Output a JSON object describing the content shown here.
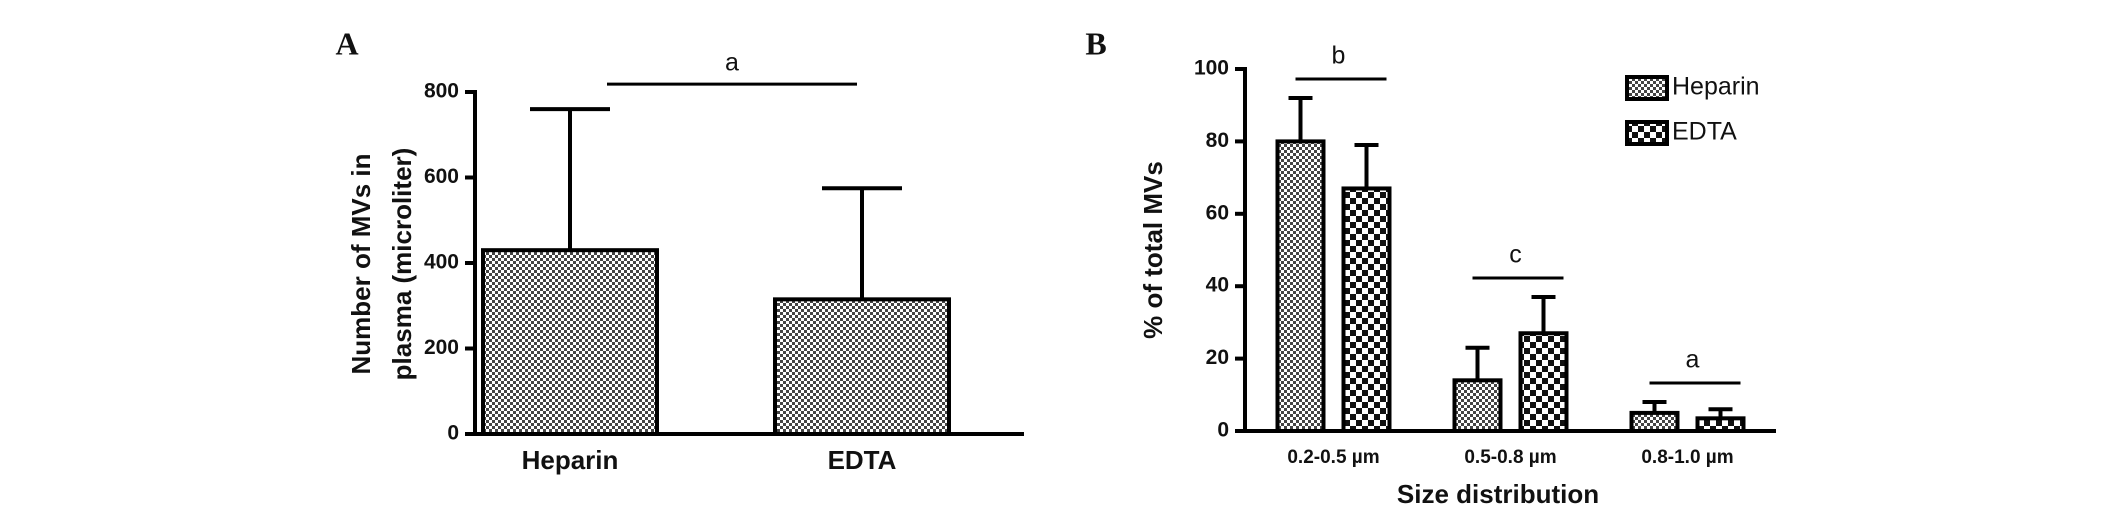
{
  "chart_data": [
    {
      "type": "bar",
      "panel_label": "A",
      "y_label": [
        "Number of MVs in",
        "plasma (microliter)"
      ],
      "categories": [
        "Heparin",
        "EDTA"
      ],
      "values": [
        430,
        315
      ],
      "errors": [
        330,
        260
      ],
      "patterns": [
        "fine",
        "fine"
      ],
      "color": "#000000",
      "significance": "a",
      "ylim": [
        0,
        800
      ],
      "yticks": [
        0,
        200,
        400,
        600,
        800
      ]
    },
    {
      "type": "grouped_bar",
      "panel_label": "B",
      "y_label": "% of total MVs",
      "x_label": "Size distribution",
      "categories": [
        "0.2-0.5 µm",
        "0.5-0.8 µm",
        "0.8-1.0 µm"
      ],
      "series": [
        {
          "name": "Heparin",
          "color": "#000000",
          "pattern": "fine",
          "values": [
            80,
            14,
            5
          ],
          "errors": [
            12,
            9,
            3
          ]
        },
        {
          "name": "EDTA",
          "color": "#000000",
          "pattern": "coarse",
          "values": [
            67,
            27,
            3.5
          ],
          "errors": [
            12,
            10,
            2.5
          ]
        }
      ],
      "significance": [
        "b",
        "c",
        "a"
      ],
      "legend": "upper right",
      "ylim": [
        0,
        100
      ],
      "yticks": [
        0,
        20,
        40,
        60,
        80,
        100
      ]
    }
  ]
}
